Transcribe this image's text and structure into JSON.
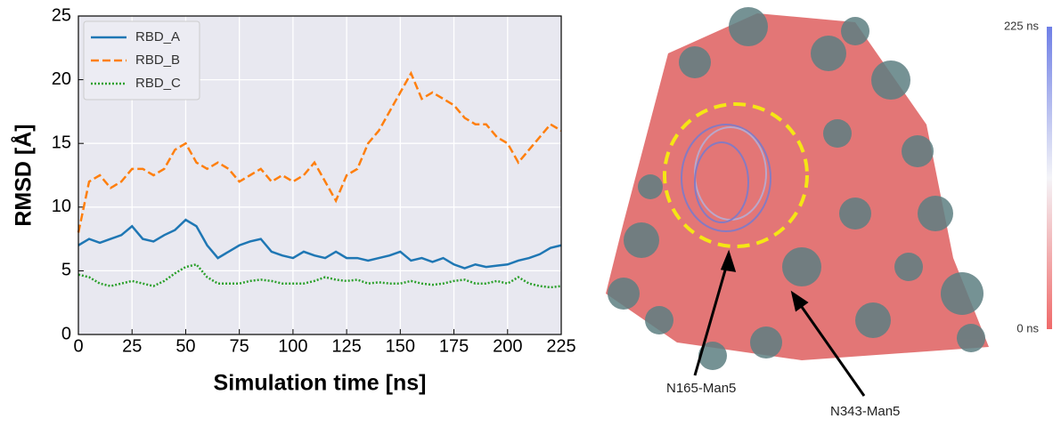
{
  "chart_data": [
    {
      "type": "line",
      "xlabel": "Simulation time [ns]",
      "ylabel": "RMSD [Å]",
      "x": [
        0,
        5,
        10,
        15,
        20,
        25,
        30,
        35,
        40,
        45,
        50,
        55,
        60,
        65,
        70,
        75,
        80,
        85,
        90,
        95,
        100,
        105,
        110,
        115,
        120,
        125,
        130,
        135,
        140,
        145,
        150,
        155,
        160,
        165,
        170,
        175,
        180,
        185,
        190,
        195,
        200,
        205,
        210,
        215,
        220,
        225
      ],
      "series": [
        {
          "name": "RBD_A",
          "color": "#1f77b4",
          "linestyle": "solid",
          "values": [
            7,
            7.5,
            7.2,
            7.5,
            7.8,
            8.5,
            7.5,
            7.3,
            7.8,
            8.2,
            9,
            8.5,
            7,
            6,
            6.5,
            7,
            7.3,
            7.5,
            6.5,
            6.2,
            6,
            6.5,
            6.2,
            6,
            6.5,
            6,
            6,
            5.8,
            6,
            6.2,
            6.5,
            5.8,
            6,
            5.7,
            6,
            5.5,
            5.2,
            5.5,
            5.3,
            5.4,
            5.5,
            5.8,
            6,
            6.3,
            6.8,
            7
          ]
        },
        {
          "name": "RBD_B",
          "color": "#ff7f0e",
          "linestyle": "dashed",
          "values": [
            8,
            12,
            12.5,
            11.5,
            12,
            13,
            13,
            12.5,
            13,
            14.5,
            15,
            13.5,
            13,
            13.5,
            13,
            12,
            12.5,
            13,
            12,
            12.5,
            12,
            12.5,
            13.5,
            12,
            10.5,
            12.5,
            13,
            15,
            16,
            17.5,
            19,
            20.5,
            18.5,
            19,
            18.5,
            18,
            17,
            16.5,
            16.5,
            15.5,
            15,
            13.5,
            14.5,
            15.5,
            16.5,
            16
          ]
        },
        {
          "name": "RBD_C",
          "color": "#2ca02c",
          "linestyle": "dotted",
          "values": [
            4.7,
            4.5,
            4,
            3.8,
            4,
            4.2,
            4,
            3.8,
            4.2,
            4.8,
            5.3,
            5.5,
            4.5,
            4,
            4,
            4,
            4.2,
            4.3,
            4.2,
            4,
            4,
            4,
            4.2,
            4.5,
            4.3,
            4.2,
            4.3,
            4,
            4.1,
            4,
            4,
            4.2,
            4,
            3.9,
            4,
            4.2,
            4.3,
            4,
            4,
            4.2,
            4,
            4.5,
            4,
            3.8,
            3.7,
            3.8
          ]
        }
      ],
      "xlim": [
        0,
        225
      ],
      "xticks": [
        0,
        25,
        50,
        75,
        100,
        125,
        150,
        175,
        200,
        225
      ],
      "ylim": [
        0,
        25
      ],
      "yticks": [
        0,
        5,
        10,
        15,
        20,
        25
      ],
      "grid": true,
      "legend": "upper-left",
      "background": "#e8e8f0"
    },
    {
      "type": "structure",
      "clim": [
        0,
        225
      ],
      "cticks": [
        {
          "value": 225,
          "label": "225 ns"
        },
        {
          "value": 0,
          "label": "0 ns"
        }
      ],
      "annotations": [
        "N165-Man5",
        "N343-Man5"
      ]
    }
  ]
}
